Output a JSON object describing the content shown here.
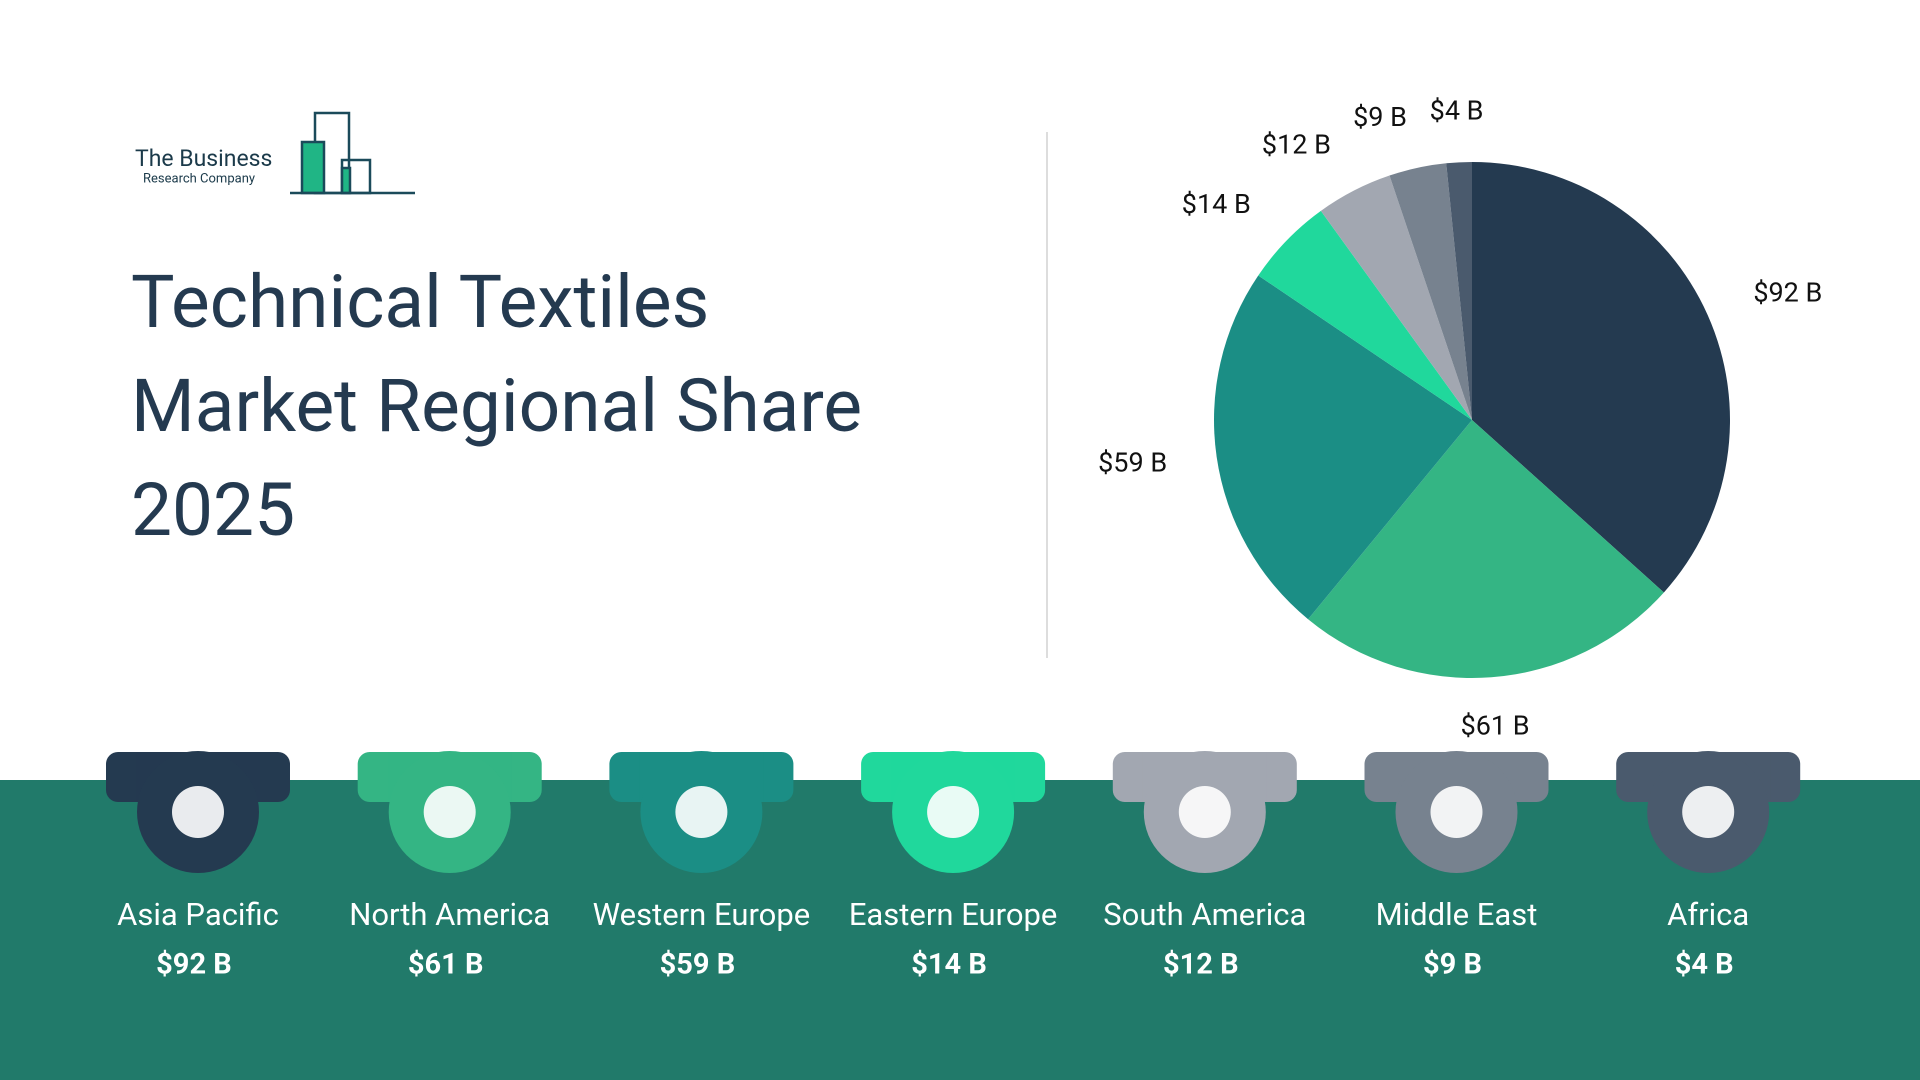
{
  "logo": {
    "line1": "The Business",
    "line2": "Research Company"
  },
  "chart_data": {
    "type": "pie",
    "title": "Technical Textiles Market Regional Share 2025",
    "categories": [
      "Asia Pacific",
      "North America",
      "Western Europe",
      "Eastern Europe",
      "South America",
      "Middle East",
      "Africa"
    ],
    "values": [
      92,
      61,
      59,
      14,
      12,
      9,
      4
    ],
    "value_labels": [
      "$92 B",
      "$61 B",
      "$59 B",
      "$14 B",
      "$12 B",
      "$9 B",
      "$4 B"
    ],
    "colors": [
      "#243a50",
      "#34b584",
      "#1b8e85",
      "#20d89c",
      "#a2a7b1",
      "#77828f",
      "#4a5a6d"
    ]
  }
}
